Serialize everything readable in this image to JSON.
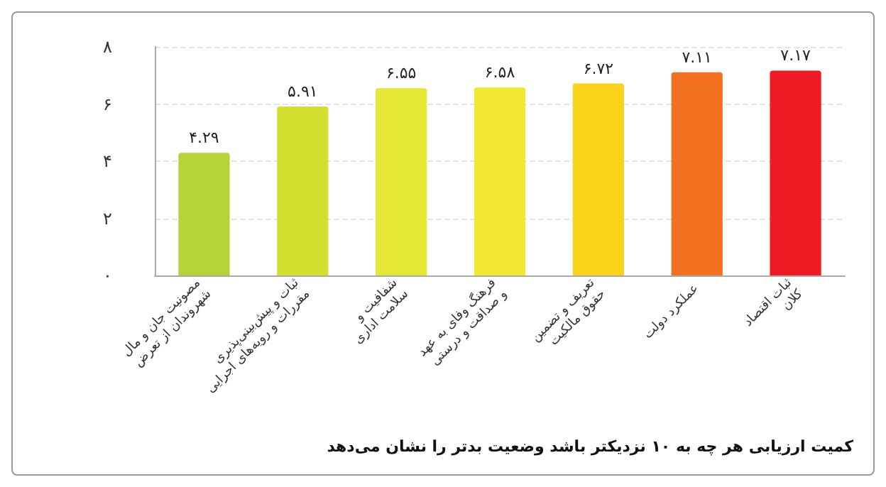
{
  "chart_data": {
    "type": "bar",
    "categories": [
      "مصونیت جان و مال شهروندان از تعرض",
      "ثبات و پیش‌بینی‌پذیری مقررات و رویه‌های اجرایی",
      "شفافیت و سلامت اداری",
      "فرهنگ وفای به عهد و صداقت و درستی",
      "تعریف و تضمین حقوق مالکیت",
      "عملکرد دولت",
      "ثبات اقتصاد کلان"
    ],
    "values": [
      4.29,
      5.91,
      6.55,
      6.58,
      6.72,
      7.11,
      7.17
    ],
    "colors": [
      "#b5d334",
      "#d4de2e",
      "#e6e635",
      "#f2e832",
      "#fbd31b",
      "#f37021",
      "#ed1c24"
    ],
    "value_labels": [
      "۴.۲۹",
      "۵.۹۱",
      "۶.۵۵",
      "۶.۵۸",
      "۶.۷۲",
      "۷.۱۱",
      "۷.۱۷"
    ],
    "ylim": [
      0,
      8
    ],
    "yticks": [
      {
        "value": 0,
        "label": "۰"
      },
      {
        "value": 2,
        "label": "۲"
      },
      {
        "value": 4,
        "label": "۴"
      },
      {
        "value": 6,
        "label": "۶"
      },
      {
        "value": 8,
        "label": "۸"
      }
    ],
    "grid": "y",
    "annotations": [
      "کمیت ارزیابی هر چه به ۱۰ نزدیکتر باشد وضعیت بدتر را نشان می‌دهد"
    ]
  }
}
